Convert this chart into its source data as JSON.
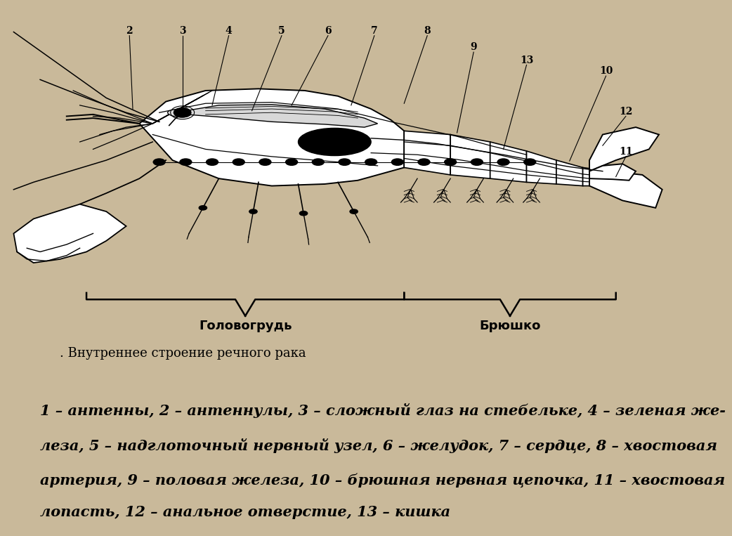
{
  "bg_color": "#c9b99a",
  "panel_top_bg": "#f8f5ec",
  "panel_bottom_bg": "#ffffff",
  "title_diagram": ". Внутреннее строение речного рака",
  "title_fontsize": 13,
  "legend_lines": [
    "1 – антенны, 2 – антеннулы, 3 – сложный глаз на стебельке, 4 – зеленая же-",
    "леза, 5 – надглоточный нервный узел, 6 – желудок, 7 – сердце, 8 – хвостовая",
    "артерия, 9 – половая железа, 10 – брюшная нервная цепочка, 11 – хвостовая",
    "лопасть, 12 – анальное отверстие, 13 – кишка"
  ],
  "legend_fontsize": 15,
  "label_golovogrud": "Головогрудь",
  "label_bryushko": "Брюшко"
}
